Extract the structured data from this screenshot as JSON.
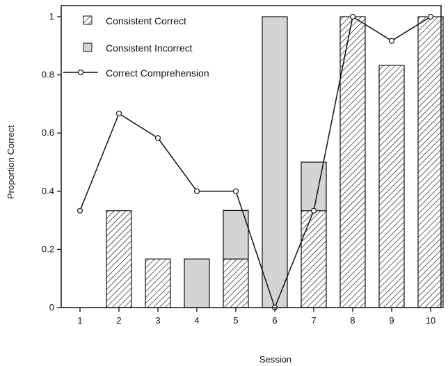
{
  "chart_data": {
    "type": "bar",
    "xlabel": "Session",
    "ylabel": "Proportion Correct",
    "categories": [
      "1",
      "2",
      "3",
      "4",
      "5",
      "6",
      "7",
      "8",
      "9",
      "10"
    ],
    "ylim": [
      0,
      1
    ],
    "yticks": [
      "0",
      "0.2",
      "0.4",
      "0.6",
      "0.8",
      "1"
    ],
    "series": [
      {
        "name": "Consistent Correct",
        "kind": "stacked-bar",
        "fill": "hatched",
        "values": [
          0,
          0.333,
          0.167,
          0,
          0.167,
          0,
          0.333,
          1.0,
          0.833,
          1.0
        ]
      },
      {
        "name": "Consistent Incorrect",
        "kind": "stacked-bar",
        "fill": "#d4d4d4",
        "values": [
          0,
          0,
          0,
          0.167,
          0.167,
          1.0,
          0.167,
          0,
          0,
          0
        ]
      },
      {
        "name": "Correct Comprehension",
        "kind": "line",
        "values": [
          0.333,
          0.667,
          0.583,
          0.4,
          0.4,
          0.0,
          0.333,
          1.0,
          0.917,
          1.0
        ]
      }
    ],
    "legend": "top-left",
    "grid": false
  }
}
